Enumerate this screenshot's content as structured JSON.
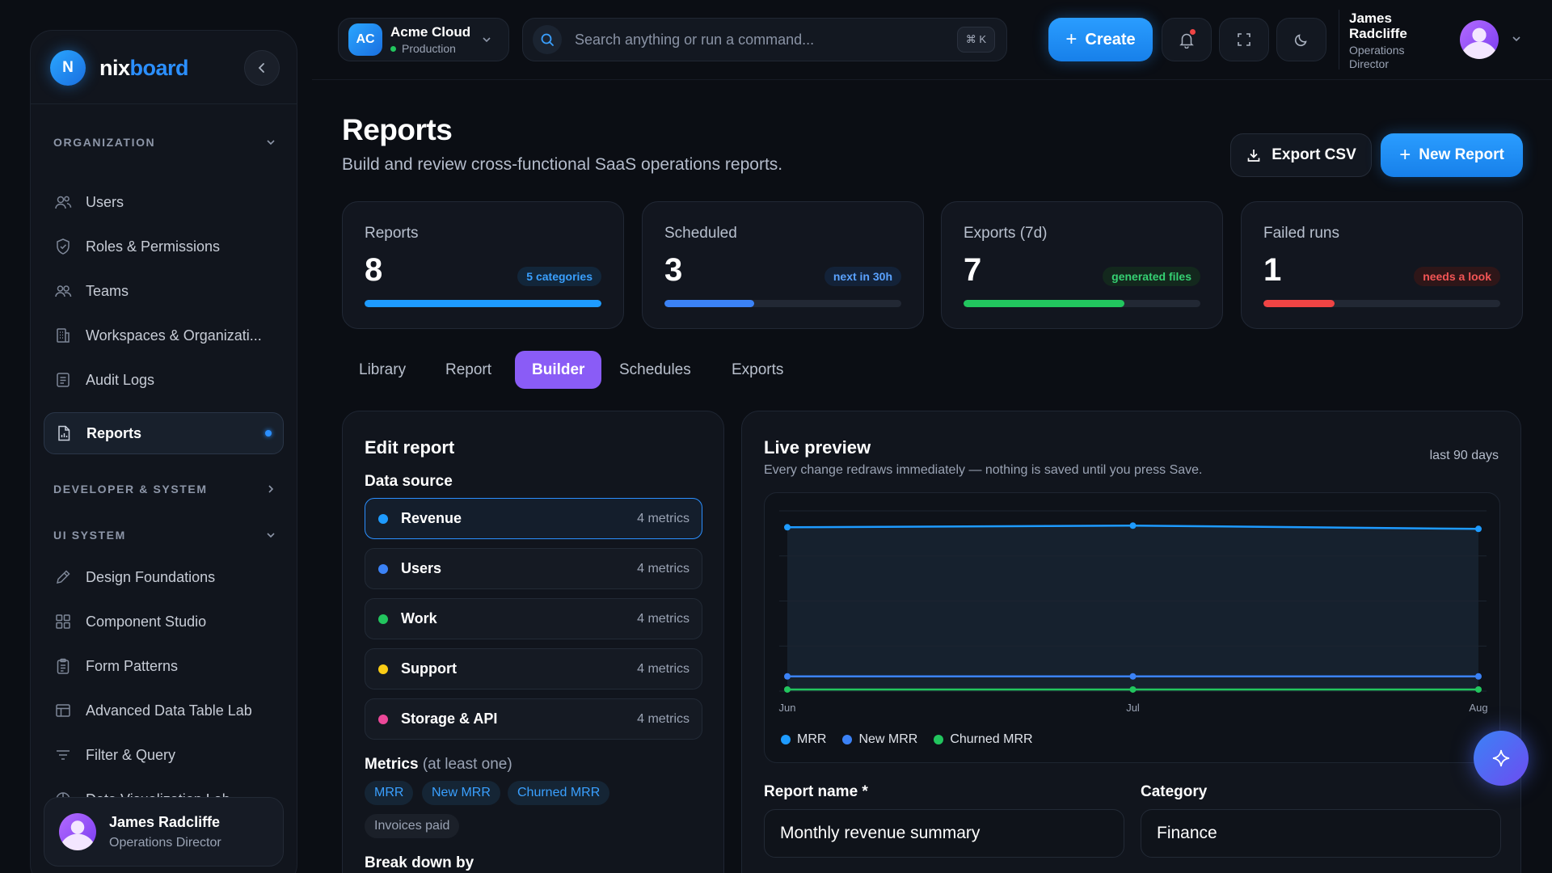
{
  "brand": {
    "badge": "N",
    "name_part1": "nix",
    "name_part2": "board"
  },
  "sidebar": {
    "sections": [
      {
        "label": "ORGANIZATION",
        "expanded": true
      },
      {
        "label": "DEVELOPER & SYSTEM",
        "expanded": false
      },
      {
        "label": "UI SYSTEM",
        "expanded": true
      }
    ],
    "items": [
      {
        "label": "Users",
        "icon": "users-icon"
      },
      {
        "label": "Roles & Permissions",
        "icon": "shield-icon"
      },
      {
        "label": "Teams",
        "icon": "teams-icon"
      },
      {
        "label": "Workspaces & Organizati...",
        "icon": "building-icon"
      },
      {
        "label": "Audit Logs",
        "icon": "log-icon"
      },
      {
        "label": "Reports",
        "icon": "report-icon",
        "active": true
      },
      {
        "label": "Design Foundations",
        "icon": "pencil-icon"
      },
      {
        "label": "Component Studio",
        "icon": "grid-icon"
      },
      {
        "label": "Form Patterns",
        "icon": "clipboard-icon"
      },
      {
        "label": "Advanced Data Table Lab",
        "icon": "table-icon"
      },
      {
        "label": "Filter & Query",
        "icon": "filter-icon"
      },
      {
        "label": "Data Visualization Lab",
        "icon": "pie-chart-icon"
      }
    ],
    "user": {
      "name": "James Radcliffe",
      "role": "Operations Director"
    }
  },
  "topbar": {
    "org": {
      "badge": "AC",
      "name": "Acme Cloud",
      "env": "Production"
    },
    "search": {
      "placeholder": "Search anything or run a command...",
      "shortcut": "⌘ K"
    },
    "create_label": "Create",
    "user": {
      "name": "James Radcliffe",
      "role": "Operations Director"
    }
  },
  "page": {
    "title": "Reports",
    "subtitle": "Build and review cross-functional SaaS operations reports.",
    "export_label": "Export CSV",
    "new_report_label": "New Report"
  },
  "stats": [
    {
      "label": "Reports",
      "value": "8",
      "badge": "5 categories",
      "progress": 1.0,
      "color": "#1e9bff",
      "badge_bg": "#12263a",
      "badge_fg": "#3aa0ff"
    },
    {
      "label": "Scheduled",
      "value": "3",
      "badge": "next in 30h",
      "progress": 0.38,
      "color": "#3b82f6",
      "badge_bg": "#132238",
      "badge_fg": "#5aa2ff"
    },
    {
      "label": "Exports (7d)",
      "value": "7",
      "badge": "generated files",
      "progress": 0.68,
      "color": "#22c55e",
      "badge_bg": "#13281d",
      "badge_fg": "#35d072"
    },
    {
      "label": "Failed runs",
      "value": "1",
      "badge": "needs a look",
      "progress": 0.3,
      "color": "#ef4444",
      "badge_bg": "#2e1618",
      "badge_fg": "#f25555"
    }
  ],
  "tabs": [
    {
      "label": "Library"
    },
    {
      "label": "Report"
    },
    {
      "label": "Builder",
      "active": true
    },
    {
      "label": "Schedules"
    },
    {
      "label": "Exports"
    }
  ],
  "editor": {
    "title": "Edit report",
    "data_source_label": "Data source",
    "sources": [
      {
        "name": "Revenue",
        "meta": "4 metrics",
        "color": "#1e9bff",
        "selected": true
      },
      {
        "name": "Users",
        "meta": "4 metrics",
        "color": "#3b82f6"
      },
      {
        "name": "Work",
        "meta": "4 metrics",
        "color": "#22c55e"
      },
      {
        "name": "Support",
        "meta": "4 metrics",
        "color": "#facc15"
      },
      {
        "name": "Storage & API",
        "meta": "4 metrics",
        "color": "#ec4899"
      }
    ],
    "metrics_label": "Metrics",
    "metrics_hint": "(at least one)",
    "metrics": [
      {
        "label": "MRR",
        "selected": true
      },
      {
        "label": "New MRR",
        "selected": true
      },
      {
        "label": "Churned MRR",
        "selected": true
      },
      {
        "label": "Invoices paid",
        "selected": false
      }
    ],
    "breakdown_label": "Break down by"
  },
  "preview": {
    "title": "Live preview",
    "subtitle": "Every change redraws immediately — nothing is saved until you press Save.",
    "range": "last 90 days",
    "report_name_label": "Report name *",
    "report_name_value": "Monthly revenue summary",
    "category_label": "Category",
    "category_value": "Finance"
  },
  "chart_data": {
    "type": "line",
    "categories": [
      "Jun",
      "Jul",
      "Aug"
    ],
    "series": [
      {
        "name": "MRR",
        "values": [
          100,
          101,
          99
        ],
        "color": "#1e9bff"
      },
      {
        "name": "New MRR",
        "values": [
          9,
          9,
          9
        ],
        "color": "#3b82f6"
      },
      {
        "name": "Churned MRR",
        "values": [
          1,
          1,
          1
        ],
        "color": "#22c55e"
      }
    ],
    "ylim": [
      0,
      110
    ],
    "grid": true,
    "legend": "bottom-left"
  }
}
